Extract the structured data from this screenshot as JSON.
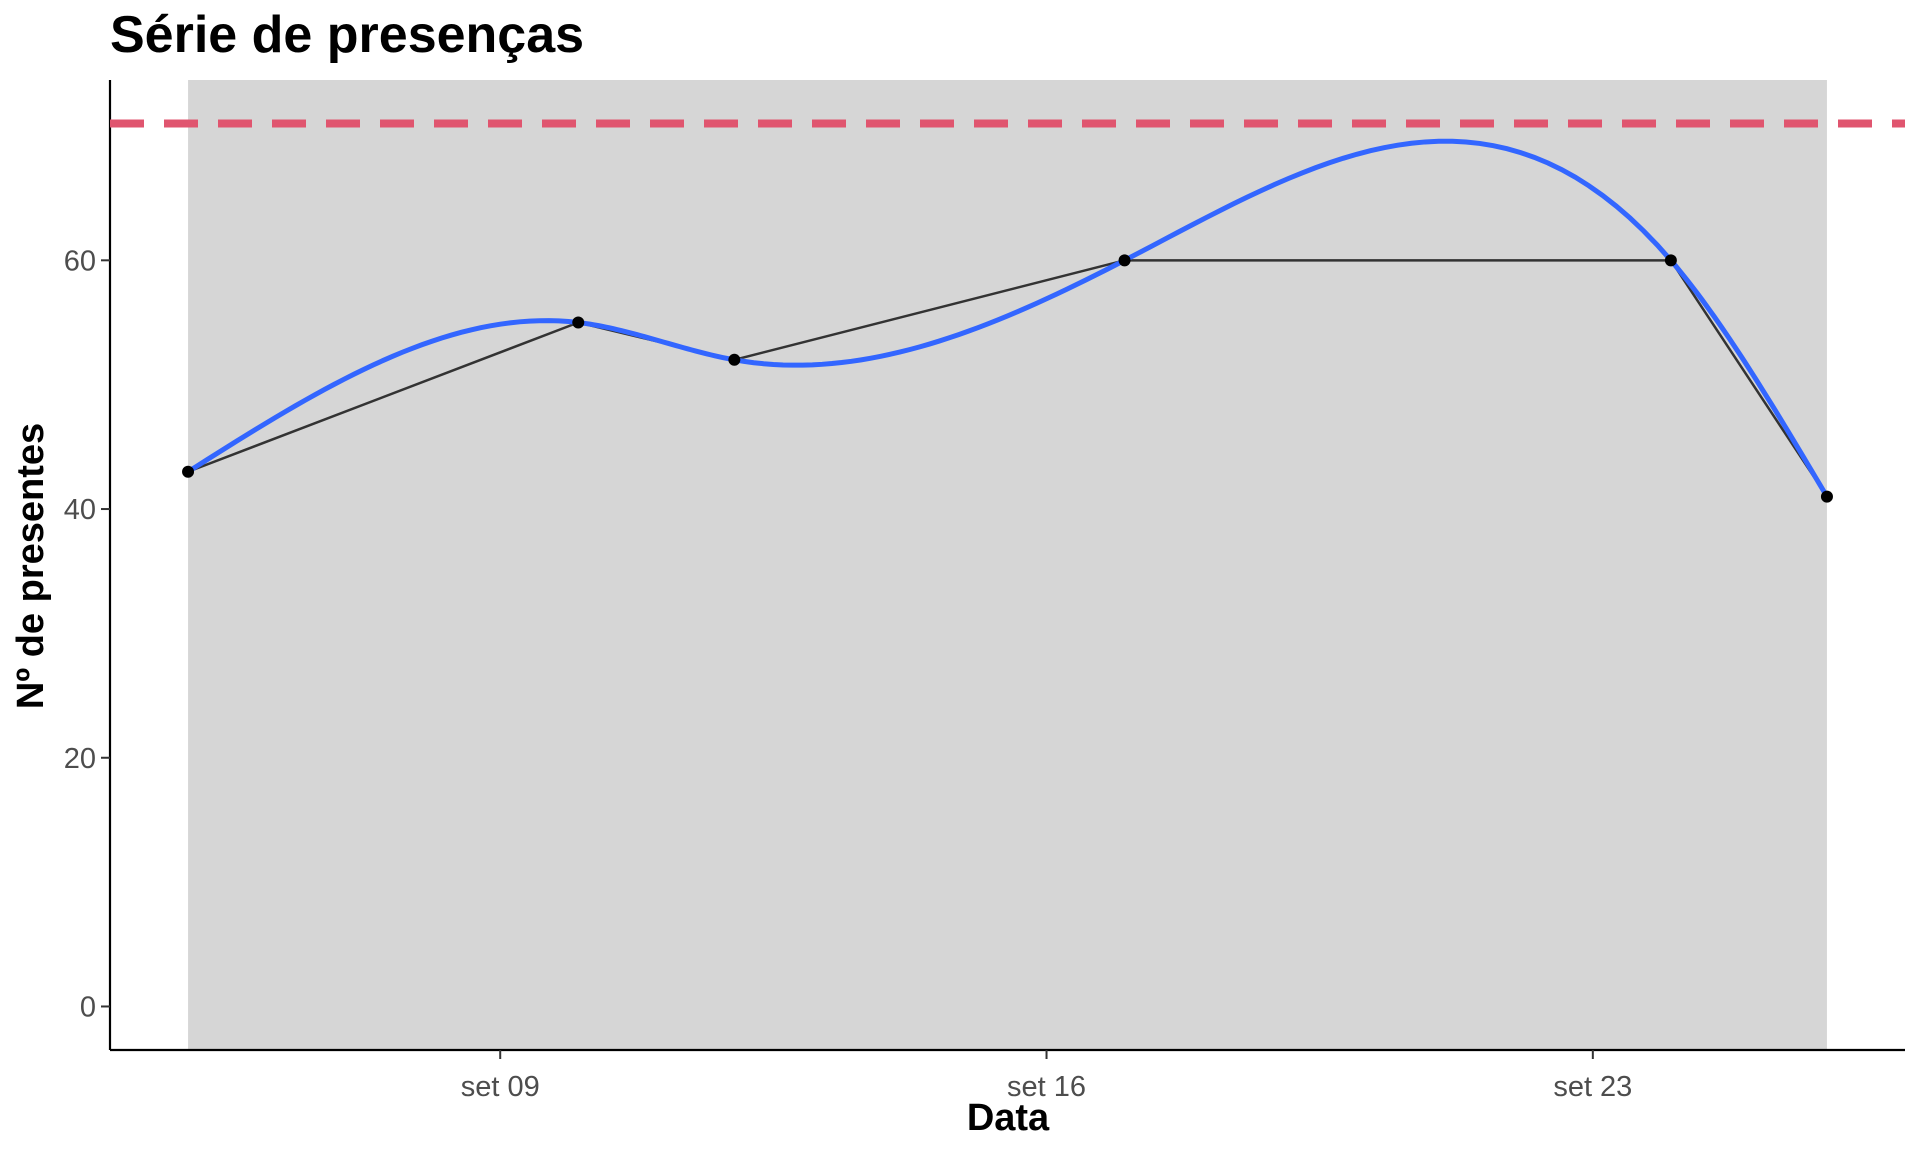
{
  "chart_data": {
    "type": "line",
    "title": "Série de presenças",
    "xlabel": "Data",
    "ylabel": "Nº de presentes",
    "x_tick_labels": [
      "set 09",
      "set 16",
      "set 23"
    ],
    "y_ticks": [
      0,
      20,
      40,
      60
    ],
    "ylim": [
      -3.5,
      74.5
    ],
    "xlim": [
      "2024-09-04",
      "2024-09-27"
    ],
    "grid": false,
    "legend": "none",
    "series": [
      {
        "values_x": [
          "2024-09-05",
          "2024-09-10",
          "2024-09-12",
          "2024-09-17",
          "2024-09-24",
          "2024-09-26"
        ],
        "values_y": [
          43,
          55,
          52,
          60,
          60,
          41
        ],
        "style": "line+points",
        "color": "#333333"
      }
    ],
    "smooth": {
      "method": "loess",
      "color": "#3366ff"
    },
    "reference_line": {
      "y": 71,
      "style": "dashed",
      "color": "#e0556f"
    },
    "shaded_period": {
      "from": "2024-09-05",
      "to": "2024-09-26",
      "color": "#d6d6d6"
    }
  }
}
